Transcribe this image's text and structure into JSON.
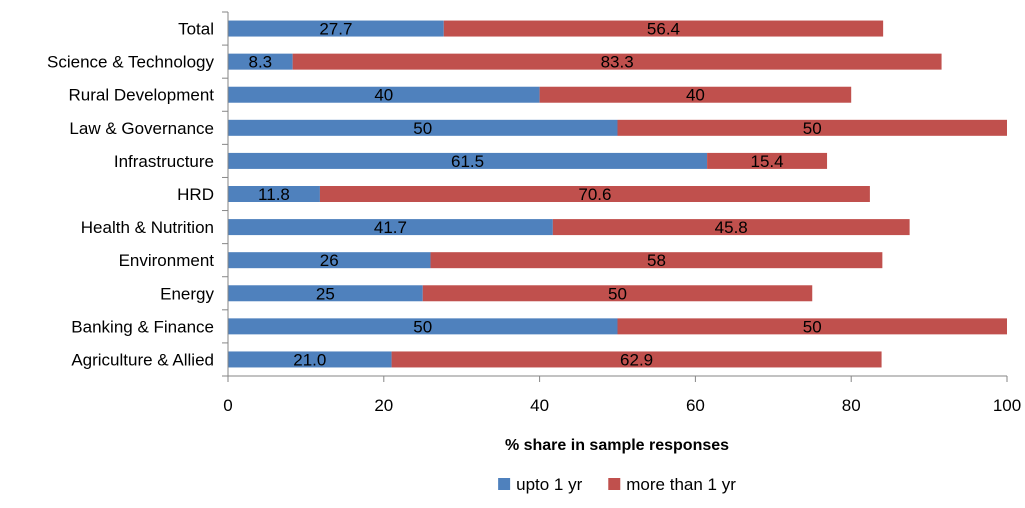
{
  "chart_data": {
    "type": "bar",
    "orientation": "horizontal",
    "stacked": true,
    "categories": [
      "Total",
      "Science & Technology",
      "Rural Development",
      "Law & Governance",
      "Infrastructure",
      "HRD",
      "Health & Nutrition",
      "Environment",
      "Energy",
      "Banking & Finance",
      "Agriculture & Allied"
    ],
    "series": [
      {
        "name": "upto 1 yr",
        "color": "#4F81BD",
        "values": [
          27.7,
          8.3,
          40,
          50,
          61.5,
          11.8,
          41.7,
          26,
          25,
          50,
          21.0
        ],
        "labels": [
          "27.7",
          "8.3",
          "40",
          "50",
          "61.5",
          "11.8",
          "41.7",
          "26",
          "25",
          "50",
          "21.0"
        ]
      },
      {
        "name": "more than 1 yr",
        "color": "#C0504D",
        "values": [
          56.4,
          83.3,
          40,
          50,
          15.4,
          70.6,
          45.8,
          58,
          50,
          50,
          62.9
        ],
        "labels": [
          "56.4",
          "83.3",
          "40",
          "50",
          "15.4",
          "70.6",
          "45.8",
          "58",
          "50",
          "50",
          "62.9"
        ]
      }
    ],
    "xlabel": "% share in sample responses",
    "xlim": [
      0,
      100
    ],
    "xticks": [
      0,
      20,
      40,
      60,
      80,
      100
    ],
    "xtick_labels": [
      "0",
      "20",
      "40",
      "60",
      "80",
      "100"
    ],
    "grid": false,
    "legend_position": "bottom"
  }
}
